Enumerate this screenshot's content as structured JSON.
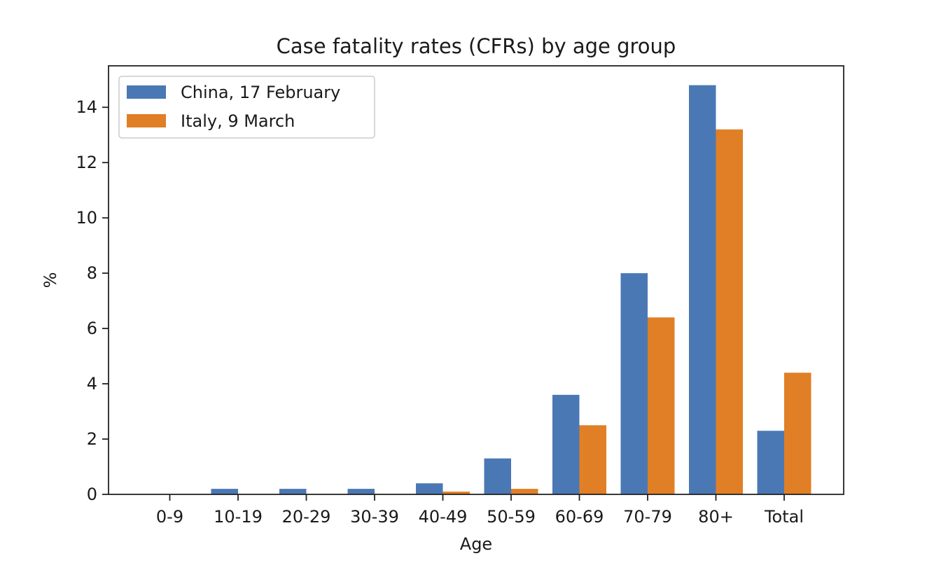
{
  "chart_data": {
    "type": "bar",
    "title": "Case fatality rates (CFRs) by age group",
    "xlabel": "Age",
    "ylabel": "%",
    "categories": [
      "0-9",
      "10-19",
      "20-29",
      "30-39",
      "40-49",
      "50-59",
      "60-69",
      "70-79",
      "80+",
      "Total"
    ],
    "ylim": [
      0,
      15.5
    ],
    "yticks": [
      0,
      2,
      4,
      6,
      8,
      10,
      12,
      14
    ],
    "grid": false,
    "legend_position": "top-left",
    "series": [
      {
        "name": "China, 17 February",
        "color": "#4a78b4",
        "values": [
          0,
          0.2,
          0.2,
          0.2,
          0.4,
          1.3,
          3.6,
          8.0,
          14.8,
          2.3
        ]
      },
      {
        "name": "Italy, 9 March",
        "color": "#e07f26",
        "values": [
          0,
          0,
          0,
          0,
          0.1,
          0.2,
          2.5,
          6.4,
          13.2,
          4.4
        ]
      }
    ]
  }
}
